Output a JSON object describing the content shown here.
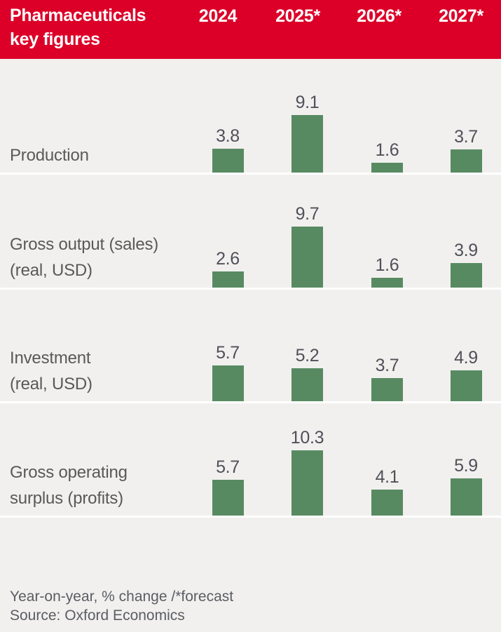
{
  "header": {
    "title_line1": "Pharmaceuticals",
    "title_line2": "key figures",
    "background_color": "#dc0028",
    "text_color": "#ffffff"
  },
  "chart_data": {
    "type": "bar",
    "title": "Pharmaceuticals key figures",
    "categories": [
      "2024",
      "2025*",
      "2026*",
      "2027*"
    ],
    "series": [
      {
        "name": "Production",
        "label_lines": [
          "Production"
        ],
        "values": [
          3.8,
          9.1,
          1.6,
          3.7
        ]
      },
      {
        "name": "Gross output (sales) (real, USD)",
        "label_lines": [
          "Gross output (sales)",
          "(real, USD)"
        ],
        "values": [
          2.6,
          9.7,
          1.6,
          3.9
        ]
      },
      {
        "name": "Investment (real, USD)",
        "label_lines": [
          "Investment",
          "(real, USD)"
        ],
        "values": [
          5.7,
          5.2,
          3.7,
          4.9
        ]
      },
      {
        "name": "Gross operating surplus (profits)",
        "label_lines": [
          "Gross operating",
          "surplus (profits)"
        ],
        "values": [
          5.7,
          10.3,
          4.1,
          5.9
        ]
      }
    ],
    "ylabel": "Year-on-year, % change",
    "ylim": [
      0,
      11
    ],
    "grid": false,
    "legend_position": "none",
    "value_labels_shown": true,
    "bar_color": "#588a62",
    "value_label_color": "#50505a",
    "row_label_color": "#595959",
    "background_color": "#f1f0ee",
    "separator_color": "#ffffff"
  },
  "footer": {
    "note": "Year-on-year, % change /*forecast",
    "source": "Source: Oxford Economics"
  }
}
